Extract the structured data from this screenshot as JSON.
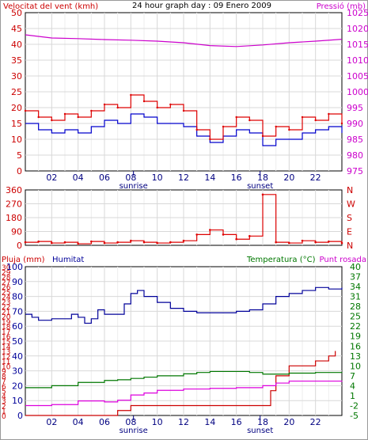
{
  "chart_data": [
    {
      "type": "line",
      "title": "24 hour graph day : 09 Enero 2009",
      "ylabel": "Velocitat del vent (kmh)",
      "ylabel_right": "Pressió (mb)",
      "ylim": [
        0,
        50
      ],
      "ylim_right": [
        975,
        1025
      ],
      "yticks": [
        "0",
        "5",
        "10",
        "15",
        "20",
        "25",
        "30",
        "35",
        "40",
        "45",
        "50"
      ],
      "yticks_right": [
        "975",
        "980",
        "985",
        "990",
        "995",
        "1000",
        "1005",
        "1010",
        "1015",
        "1020",
        "1025"
      ],
      "xlim": [
        0,
        24
      ],
      "xticks": [
        "02",
        "04",
        "06",
        "08",
        "10",
        "12",
        "14",
        "16",
        "18",
        "20",
        "22"
      ],
      "events": [
        {
          "label": "sunrise",
          "hour": 8.2
        },
        {
          "label": "sunset",
          "hour": 17.8
        }
      ],
      "series": [
        {
          "name": "Velocitat del vent (kmh)",
          "kind": "gust",
          "color": "#dd0000",
          "axis": "left",
          "x": [
            0,
            1,
            2,
            3,
            4,
            5,
            6,
            7,
            8,
            9,
            10,
            11,
            12,
            13,
            14,
            15,
            16,
            17,
            18,
            19,
            20,
            21,
            22,
            23,
            24
          ],
          "y": [
            19,
            17,
            16,
            18,
            17,
            19,
            21,
            20,
            24,
            22,
            20,
            21,
            19,
            13,
            10,
            14,
            17,
            16,
            11,
            14,
            13,
            17,
            16,
            18,
            15
          ]
        },
        {
          "name": "Vent mitjà",
          "kind": "average",
          "color": "#0000cc",
          "axis": "left",
          "x": [
            0,
            1,
            2,
            3,
            4,
            5,
            6,
            7,
            8,
            9,
            10,
            11,
            12,
            13,
            14,
            15,
            16,
            17,
            18,
            19,
            20,
            21,
            22,
            23,
            24
          ],
          "y": [
            15,
            13,
            12,
            13,
            12,
            14,
            16,
            15,
            18,
            17,
            15,
            15,
            14,
            11,
            9,
            11,
            13,
            12,
            8,
            10,
            10,
            12,
            13,
            14,
            12
          ]
        },
        {
          "name": "Pressió (mb)",
          "color": "#cc00cc",
          "axis": "right",
          "x": [
            0,
            2,
            4,
            6,
            8,
            10,
            12,
            14,
            16,
            18,
            20,
            22,
            24
          ],
          "y": [
            1018,
            1017,
            1016.8,
            1016.5,
            1016.3,
            1016,
            1015.5,
            1014.6,
            1014.3,
            1014.8,
            1015.5,
            1016,
            1016.6
          ]
        }
      ]
    },
    {
      "type": "scatter",
      "ylabel_right": "Direcció del vent",
      "ylim": [
        0,
        360
      ],
      "yticks": [
        "0",
        "90",
        "180",
        "270",
        "360"
      ],
      "yticks_right": [
        "N",
        "E",
        "S",
        "W",
        "N"
      ],
      "xlim": [
        0,
        24
      ],
      "xticks": [
        "02",
        "04",
        "06",
        "08",
        "10",
        "12",
        "14",
        "16",
        "18",
        "20",
        "22"
      ],
      "events": [
        {
          "label": "sunrise",
          "hour": 8.2
        },
        {
          "label": "sunset",
          "hour": 17.8
        }
      ],
      "series": [
        {
          "name": "Direcció del vent",
          "color": "#dd0000",
          "x": [
            0,
            1,
            2,
            3,
            4,
            5,
            6,
            7,
            8,
            9,
            10,
            11,
            12,
            13,
            14,
            15,
            16,
            17,
            18,
            19,
            20,
            21,
            22,
            23,
            24
          ],
          "y": [
            20,
            25,
            15,
            20,
            10,
            25,
            15,
            20,
            30,
            20,
            15,
            20,
            30,
            70,
            100,
            70,
            40,
            60,
            330,
            20,
            15,
            30,
            20,
            25,
            15
          ]
        }
      ]
    },
    {
      "type": "line",
      "ylabel": "Pluja (mm)",
      "ylabel_2": "Humitat",
      "ylabel_right": "Temperatura (°C)",
      "ylabel_right_2": "Punt rosada",
      "ylim_rain": [
        0,
        3
      ],
      "yticks_rain": [
        "0",
        "1",
        "2",
        "3",
        "4",
        "5",
        "6",
        "7",
        "8",
        "9",
        "10",
        "11",
        "12",
        "13",
        "14",
        "15",
        "16",
        "17",
        "18",
        "19",
        "20",
        "21",
        "22",
        "23",
        "24",
        "25",
        "26",
        "27",
        "28",
        "29",
        "30"
      ],
      "ylim_humidity": [
        0,
        100
      ],
      "yticks_humidity": [
        "0",
        "10",
        "20",
        "30",
        "40",
        "50",
        "60",
        "70",
        "80",
        "90",
        "100"
      ],
      "ylim_temperature": [
        -5,
        40
      ],
      "yticks_temperature": [
        "-5",
        "-2",
        "1",
        "4",
        "7",
        "10",
        "13",
        "16",
        "19",
        "22",
        "25",
        "28",
        "31",
        "34",
        "37",
        "40"
      ],
      "xlim": [
        0,
        24
      ],
      "xticks": [
        "02",
        "04",
        "06",
        "08",
        "10",
        "12",
        "14",
        "16",
        "18",
        "20",
        "22"
      ],
      "events": [
        {
          "label": "sunrise",
          "hour": 8.2
        },
        {
          "label": "sunset",
          "hour": 17.8
        }
      ],
      "series": [
        {
          "name": "Pluja (mm)",
          "color": "#cc0000",
          "axis": "rain",
          "x": [
            0,
            6.5,
            7.0,
            8,
            12,
            16,
            18,
            18.6,
            19,
            20,
            22,
            23,
            23.5
          ],
          "y": [
            0,
            0,
            0.1,
            0.2,
            0.2,
            0.2,
            0.2,
            0.5,
            0.8,
            1.0,
            1.1,
            1.2,
            1.3
          ]
        },
        {
          "name": "Humitat",
          "color": "#000099",
          "axis": "humidity",
          "x": [
            0,
            0.5,
            1,
            2,
            3,
            3.5,
            4,
            4.5,
            5,
            5.5,
            6,
            7,
            7.5,
            8,
            8.5,
            9,
            10,
            11,
            12,
            13,
            14,
            15,
            16,
            17,
            18,
            19,
            20,
            21,
            22,
            23,
            24
          ],
          "y": [
            68,
            66,
            64,
            65,
            65,
            68,
            66,
            62,
            65,
            71,
            68,
            68,
            75,
            82,
            84,
            80,
            76,
            72,
            70,
            69,
            69,
            69,
            70,
            71,
            75,
            80,
            82,
            84,
            86,
            85,
            86
          ]
        },
        {
          "name": "Temperatura (°C)",
          "color": "#007700",
          "axis": "temperature",
          "x": [
            0,
            2,
            4,
            6,
            7,
            8,
            9,
            10,
            12,
            13,
            14,
            16,
            17,
            18,
            19,
            20,
            22,
            24
          ],
          "y": [
            3.4,
            4.0,
            5.0,
            5.6,
            5.8,
            6.2,
            6.6,
            7.0,
            7.6,
            8.0,
            8.3,
            8.3,
            8.0,
            7.5,
            7.5,
            7.8,
            8.0,
            7.9
          ]
        },
        {
          "name": "Punt rosada",
          "color": "#dd00dd",
          "axis": "temperature",
          "x": [
            0,
            2,
            4,
            6,
            7,
            8,
            9,
            10,
            12,
            14,
            16,
            18,
            19,
            20,
            22,
            24
          ],
          "y": [
            -2.0,
            -1.7,
            -0.6,
            -0.9,
            -0.4,
            1.2,
            1.8,
            2.6,
            3.0,
            3.2,
            3.4,
            4.0,
            4.8,
            5.4,
            5.4,
            5.2
          ]
        }
      ]
    }
  ]
}
